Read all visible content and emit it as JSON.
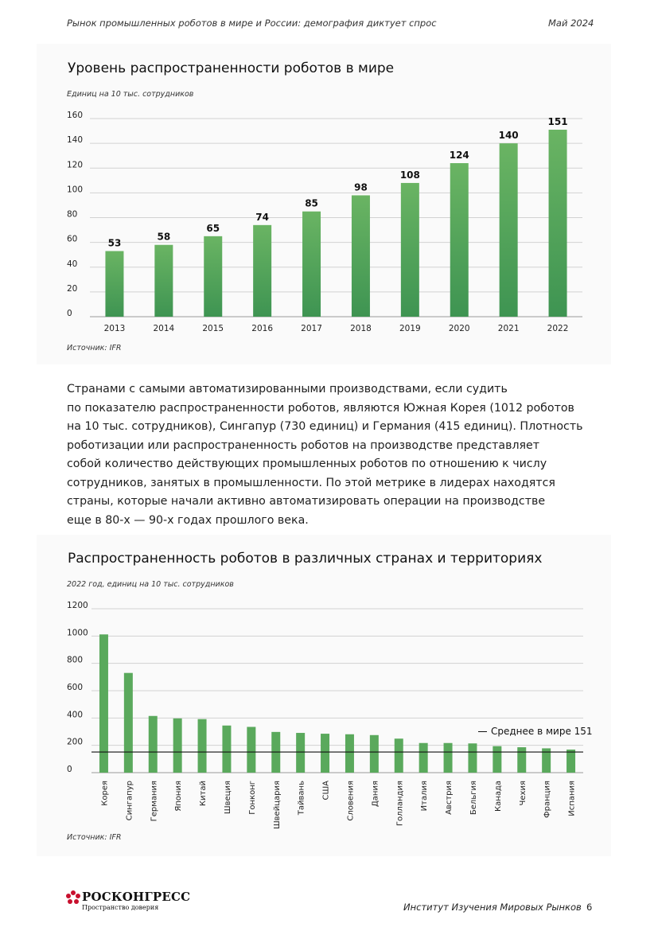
{
  "header": {
    "title": "Рынок промышленных роботов в мире и России: демография диктует спрос",
    "date": "Май 2024"
  },
  "chart1": {
    "title": "Уровень распространенности роботов в мире",
    "unit": "Единиц на 10 тыс. сотрудников",
    "source": "Источник: IFR"
  },
  "paragraph": [
    "Странами с самыми автоматизированными производствами, если судить",
    "по показателю распространенности роботов, являются Южная Корея (1012 роботов",
    "на 10 тыс. сотрудников), Сингапур (730 единиц) и Германия (415 единиц). Плотность",
    "роботизации или распространенность роботов на производстве представляет",
    "собой количество действующих промышленных роботов по отношению к числу",
    "сотрудников, занятых в промышленности. По этой метрике в лидерах находятся",
    "страны, которые начали активно автоматизировать операции на производстве",
    "еще в 80-х — 90-х годах прошлого века."
  ],
  "chart2": {
    "title": "Распространенность роботов в различных странах и территориях",
    "unit": "2022 год, единиц на 10 тыс. сотрудников",
    "source": "Источник: IFR",
    "reference_label": "Среднее в мире 151"
  },
  "chart_data": [
    {
      "type": "bar",
      "categories": [
        "2013",
        "2014",
        "2015",
        "2016",
        "2017",
        "2018",
        "2019",
        "2020",
        "2021",
        "2022"
      ],
      "values": [
        53,
        58,
        65,
        74,
        85,
        98,
        108,
        124,
        140,
        151
      ],
      "yticks": [
        0,
        20,
        40,
        60,
        80,
        100,
        120,
        140,
        160
      ],
      "ylim": [
        0,
        160
      ],
      "data_labels": true,
      "grid": true,
      "color": "#5aa95c"
    },
    {
      "type": "bar",
      "categories": [
        "Корея",
        "Сингапур",
        "Германия",
        "Япония",
        "Китай",
        "Швеция",
        "Гонконг",
        "Швейцария",
        "Тайвань",
        "США",
        "Словения",
        "Дания",
        "Голландия",
        "Италия",
        "Австрия",
        "Бельгия",
        "Канада",
        "Чехия",
        "Франция",
        "Испания"
      ],
      "values": [
        1012,
        730,
        415,
        397,
        392,
        345,
        335,
        298,
        291,
        285,
        281,
        275,
        249,
        217,
        217,
        214,
        194,
        186,
        178,
        169
      ],
      "yticks": [
        0,
        200,
        400,
        600,
        800,
        1000,
        1200
      ],
      "ylim": [
        0,
        1200
      ],
      "reference_line": 151,
      "grid": true,
      "color": "#5aa95c"
    }
  ],
  "footer": {
    "logo": "РОСКОНГРЕСС",
    "logo_tagline": "Пространство доверия",
    "institute": "Институт Изучения Мировых Рынков",
    "page_number": "6"
  },
  "colors": {
    "bar": "#5aa95c",
    "bar_dark": "#3e9452",
    "logo": "#c8102e",
    "grid": "#cfcfcf"
  }
}
